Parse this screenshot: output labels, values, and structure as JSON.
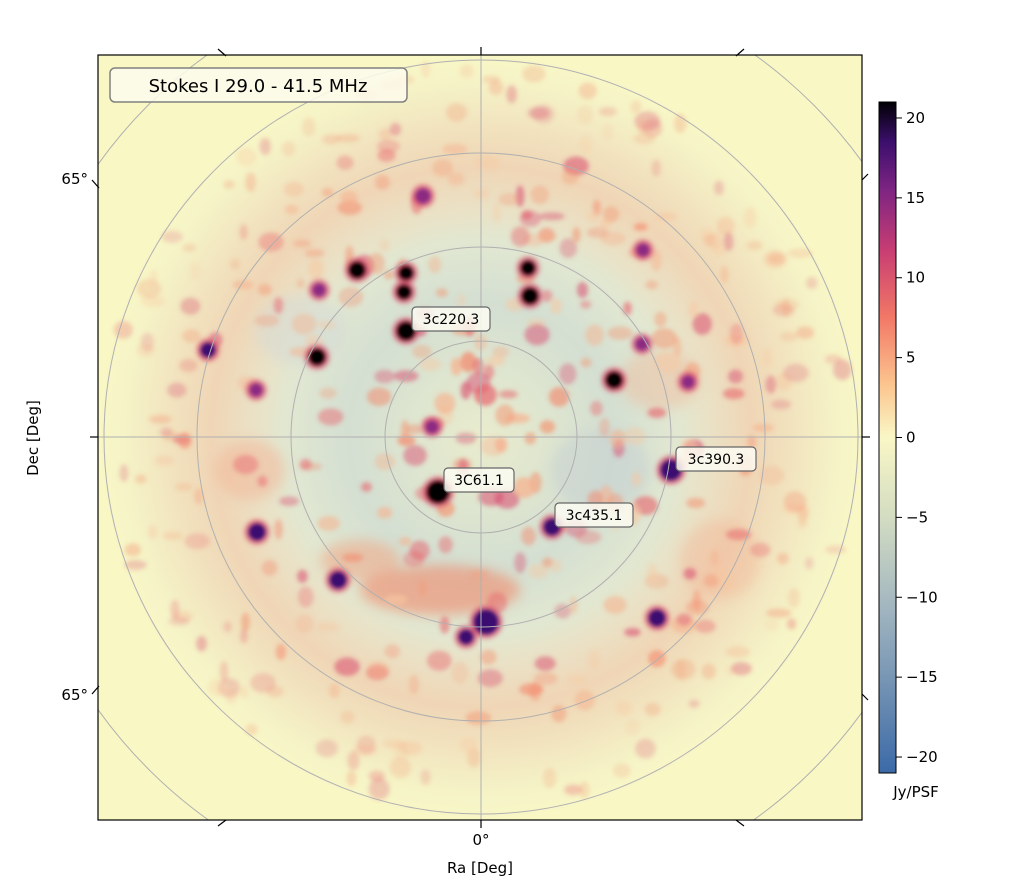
{
  "chart_data": {
    "type": "heatmap",
    "title_box": "Stokes I 29.0 - 41.5 MHz",
    "xlabel": "Ra [Deg]",
    "ylabel": "Dec [Deg]",
    "x_tick_labels": [
      "0°"
    ],
    "y_tick_labels": [
      "65°",
      "65°"
    ],
    "projection": "polar all-sky image (concentric declination circles, RA radial lines)",
    "grid": true,
    "colorbar": {
      "label": "Jy/PSF",
      "range": [
        -21,
        21
      ],
      "ticks": [
        20,
        15,
        10,
        5,
        0,
        -5,
        -10,
        -15,
        -20
      ],
      "colormap": [
        "#000004",
        "#3b0f70",
        "#8c2981",
        "#de4968",
        "#fe9f6d",
        "#fcfdbf",
        "#c9d3b8",
        "#8fa8b8",
        "#3b6aa8"
      ]
    },
    "annotations": [
      {
        "label": "3c220.3",
        "value": 21
      },
      {
        "label": "3C61.1",
        "value": 21
      },
      {
        "label": "3c390.3",
        "value": 21
      },
      {
        "label": "3c435.1",
        "value": 16
      }
    ],
    "bright_sources_jy": [
      21,
      21,
      21,
      21,
      21,
      21,
      21,
      21,
      20,
      19,
      18,
      17,
      16,
      16,
      15,
      15,
      15,
      14,
      14,
      14,
      13,
      13,
      13,
      12
    ]
  }
}
